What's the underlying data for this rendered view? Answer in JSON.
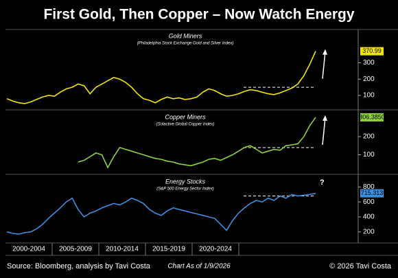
{
  "title": "First Gold, Then Copper – Now Watch Energy",
  "chart_data": [
    {
      "type": "line",
      "title": "Gold Miners",
      "subtitle": "(Philadelphia Stock Exchange Gold and Silver Index)",
      "color": "#f2e600",
      "ylim": [
        20,
        500
      ],
      "yticks": [
        100,
        200,
        300
      ],
      "reference": 150,
      "values": [
        80,
        65,
        55,
        50,
        60,
        75,
        90,
        100,
        95,
        120,
        140,
        150,
        170,
        160,
        110,
        150,
        170,
        190,
        210,
        200,
        180,
        150,
        110,
        80,
        70,
        55,
        75,
        90,
        80,
        85,
        75,
        80,
        90,
        120,
        140,
        130,
        110,
        95,
        100,
        110,
        125,
        135,
        130,
        120,
        110,
        105,
        115,
        130,
        145,
        170,
        220,
        290,
        370.99
      ],
      "value_labels": [
        null,
        null,
        null,
        null,
        null,
        null,
        null,
        null,
        null,
        null,
        null,
        null,
        null,
        null,
        null,
        null,
        null,
        null,
        null,
        null,
        null,
        null,
        null,
        null,
        null,
        null,
        null,
        null,
        null,
        null,
        null,
        null,
        null,
        null,
        null,
        null,
        null,
        null,
        null,
        null,
        null,
        null,
        null,
        null,
        null,
        null,
        null,
        null,
        null,
        null,
        null,
        null,
        "370.99"
      ]
    },
    {
      "type": "line",
      "title": "Copper Miners",
      "subtitle": "(Solactive Global Copper Index)",
      "color": "#8fd13a",
      "ylim": [
        0,
        340
      ],
      "yticks": [
        100,
        200
      ],
      "reference": 140,
      "values": [
        null,
        null,
        null,
        null,
        null,
        null,
        null,
        null,
        null,
        null,
        null,
        null,
        60,
        70,
        90,
        110,
        100,
        30,
        90,
        140,
        130,
        120,
        110,
        100,
        90,
        80,
        75,
        65,
        60,
        50,
        45,
        40,
        50,
        60,
        75,
        80,
        70,
        85,
        100,
        120,
        140,
        150,
        130,
        110,
        120,
        130,
        125,
        150,
        155,
        160,
        200,
        260,
        306.385
      ],
      "value_labels": [
        null,
        null,
        null,
        null,
        null,
        null,
        null,
        null,
        null,
        null,
        null,
        null,
        null,
        null,
        null,
        null,
        null,
        null,
        null,
        null,
        null,
        null,
        null,
        null,
        null,
        null,
        null,
        null,
        null,
        null,
        null,
        null,
        null,
        null,
        null,
        null,
        null,
        null,
        null,
        null,
        null,
        null,
        null,
        null,
        null,
        null,
        null,
        null,
        null,
        null,
        null,
        null,
        "306.3850"
      ]
    },
    {
      "type": "line",
      "title": "Energy Stocks",
      "subtitle": "(S&P 500 Energy Sector Index)",
      "annotation": "?",
      "color": "#3d8fe0",
      "ylim": [
        70,
        950
      ],
      "yticks": [
        200,
        400,
        600,
        800
      ],
      "reference": 680,
      "values": [
        200,
        180,
        170,
        190,
        200,
        240,
        300,
        380,
        450,
        520,
        600,
        650,
        500,
        400,
        450,
        480,
        520,
        550,
        580,
        560,
        600,
        650,
        620,
        580,
        500,
        450,
        420,
        480,
        520,
        500,
        480,
        460,
        440,
        420,
        400,
        380,
        300,
        220,
        350,
        450,
        520,
        580,
        620,
        600,
        650,
        620,
        680,
        650,
        700,
        680,
        690,
        700,
        715.313
      ],
      "value_labels": [
        null,
        null,
        null,
        null,
        null,
        null,
        null,
        null,
        null,
        null,
        null,
        null,
        null,
        null,
        null,
        null,
        null,
        null,
        null,
        null,
        null,
        null,
        null,
        null,
        null,
        null,
        null,
        null,
        null,
        null,
        null,
        null,
        null,
        null,
        null,
        null,
        null,
        null,
        null,
        null,
        null,
        null,
        null,
        null,
        null,
        null,
        null,
        null,
        null,
        null,
        null,
        null,
        "715.313"
      ]
    }
  ],
  "x_axis": {
    "categories": [
      "2000-2004",
      "2005-2009",
      "2010-2014",
      "2015-2019",
      "2020-2024"
    ]
  },
  "footer": {
    "source": "Source: Bloomberg, analysis by Tavi Costa",
    "date": "Chart As of 1/9/2026",
    "copyright": "© 2026 Tavi Costa"
  }
}
